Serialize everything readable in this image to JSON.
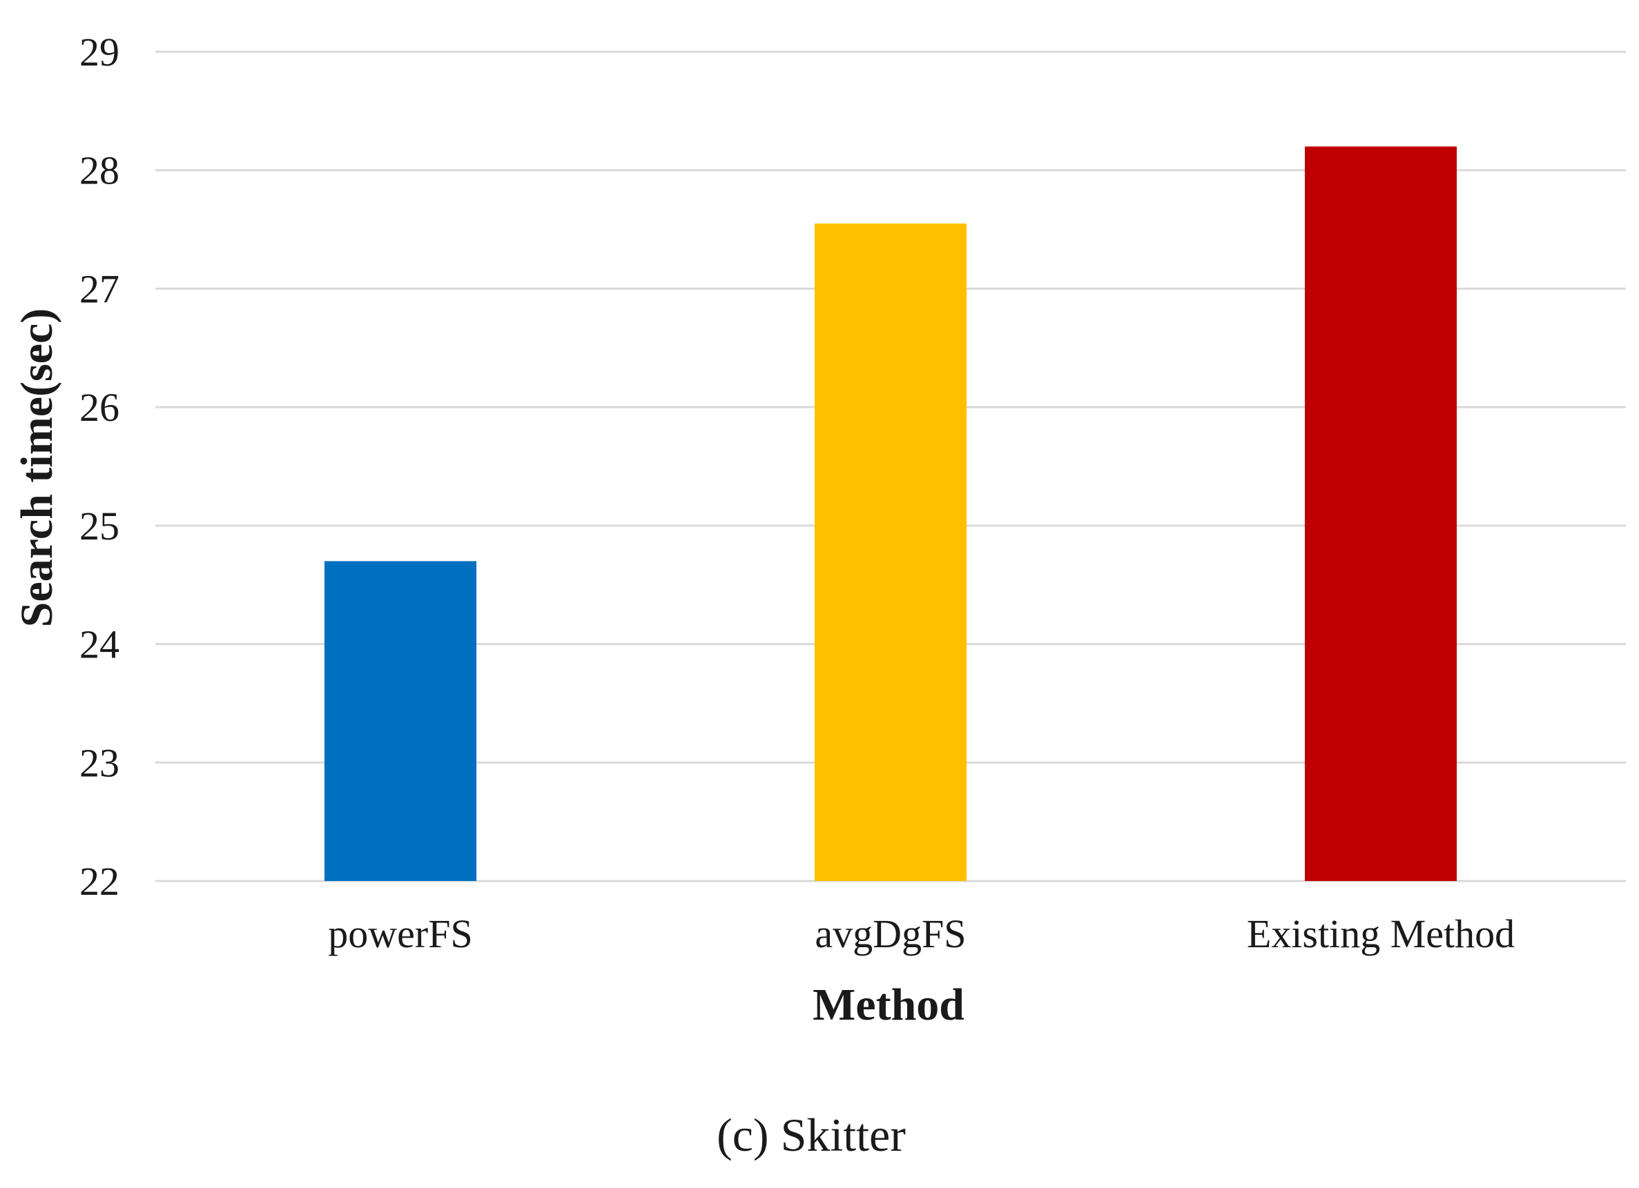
{
  "chart_data": {
    "type": "bar",
    "title": "",
    "caption": "(c) Skitter",
    "xlabel": "Method",
    "ylabel": "Search time(sec)",
    "categories": [
      "powerFS",
      "avgDgFS",
      "Existing Method"
    ],
    "values": [
      24.7,
      27.55,
      28.2
    ],
    "colors": [
      "#0070c0",
      "#ffc000",
      "#c00000"
    ],
    "ylim": [
      22,
      29
    ],
    "yticks": [
      22,
      23,
      24,
      25,
      26,
      27,
      28,
      29
    ],
    "grid": true,
    "legend": "none"
  }
}
